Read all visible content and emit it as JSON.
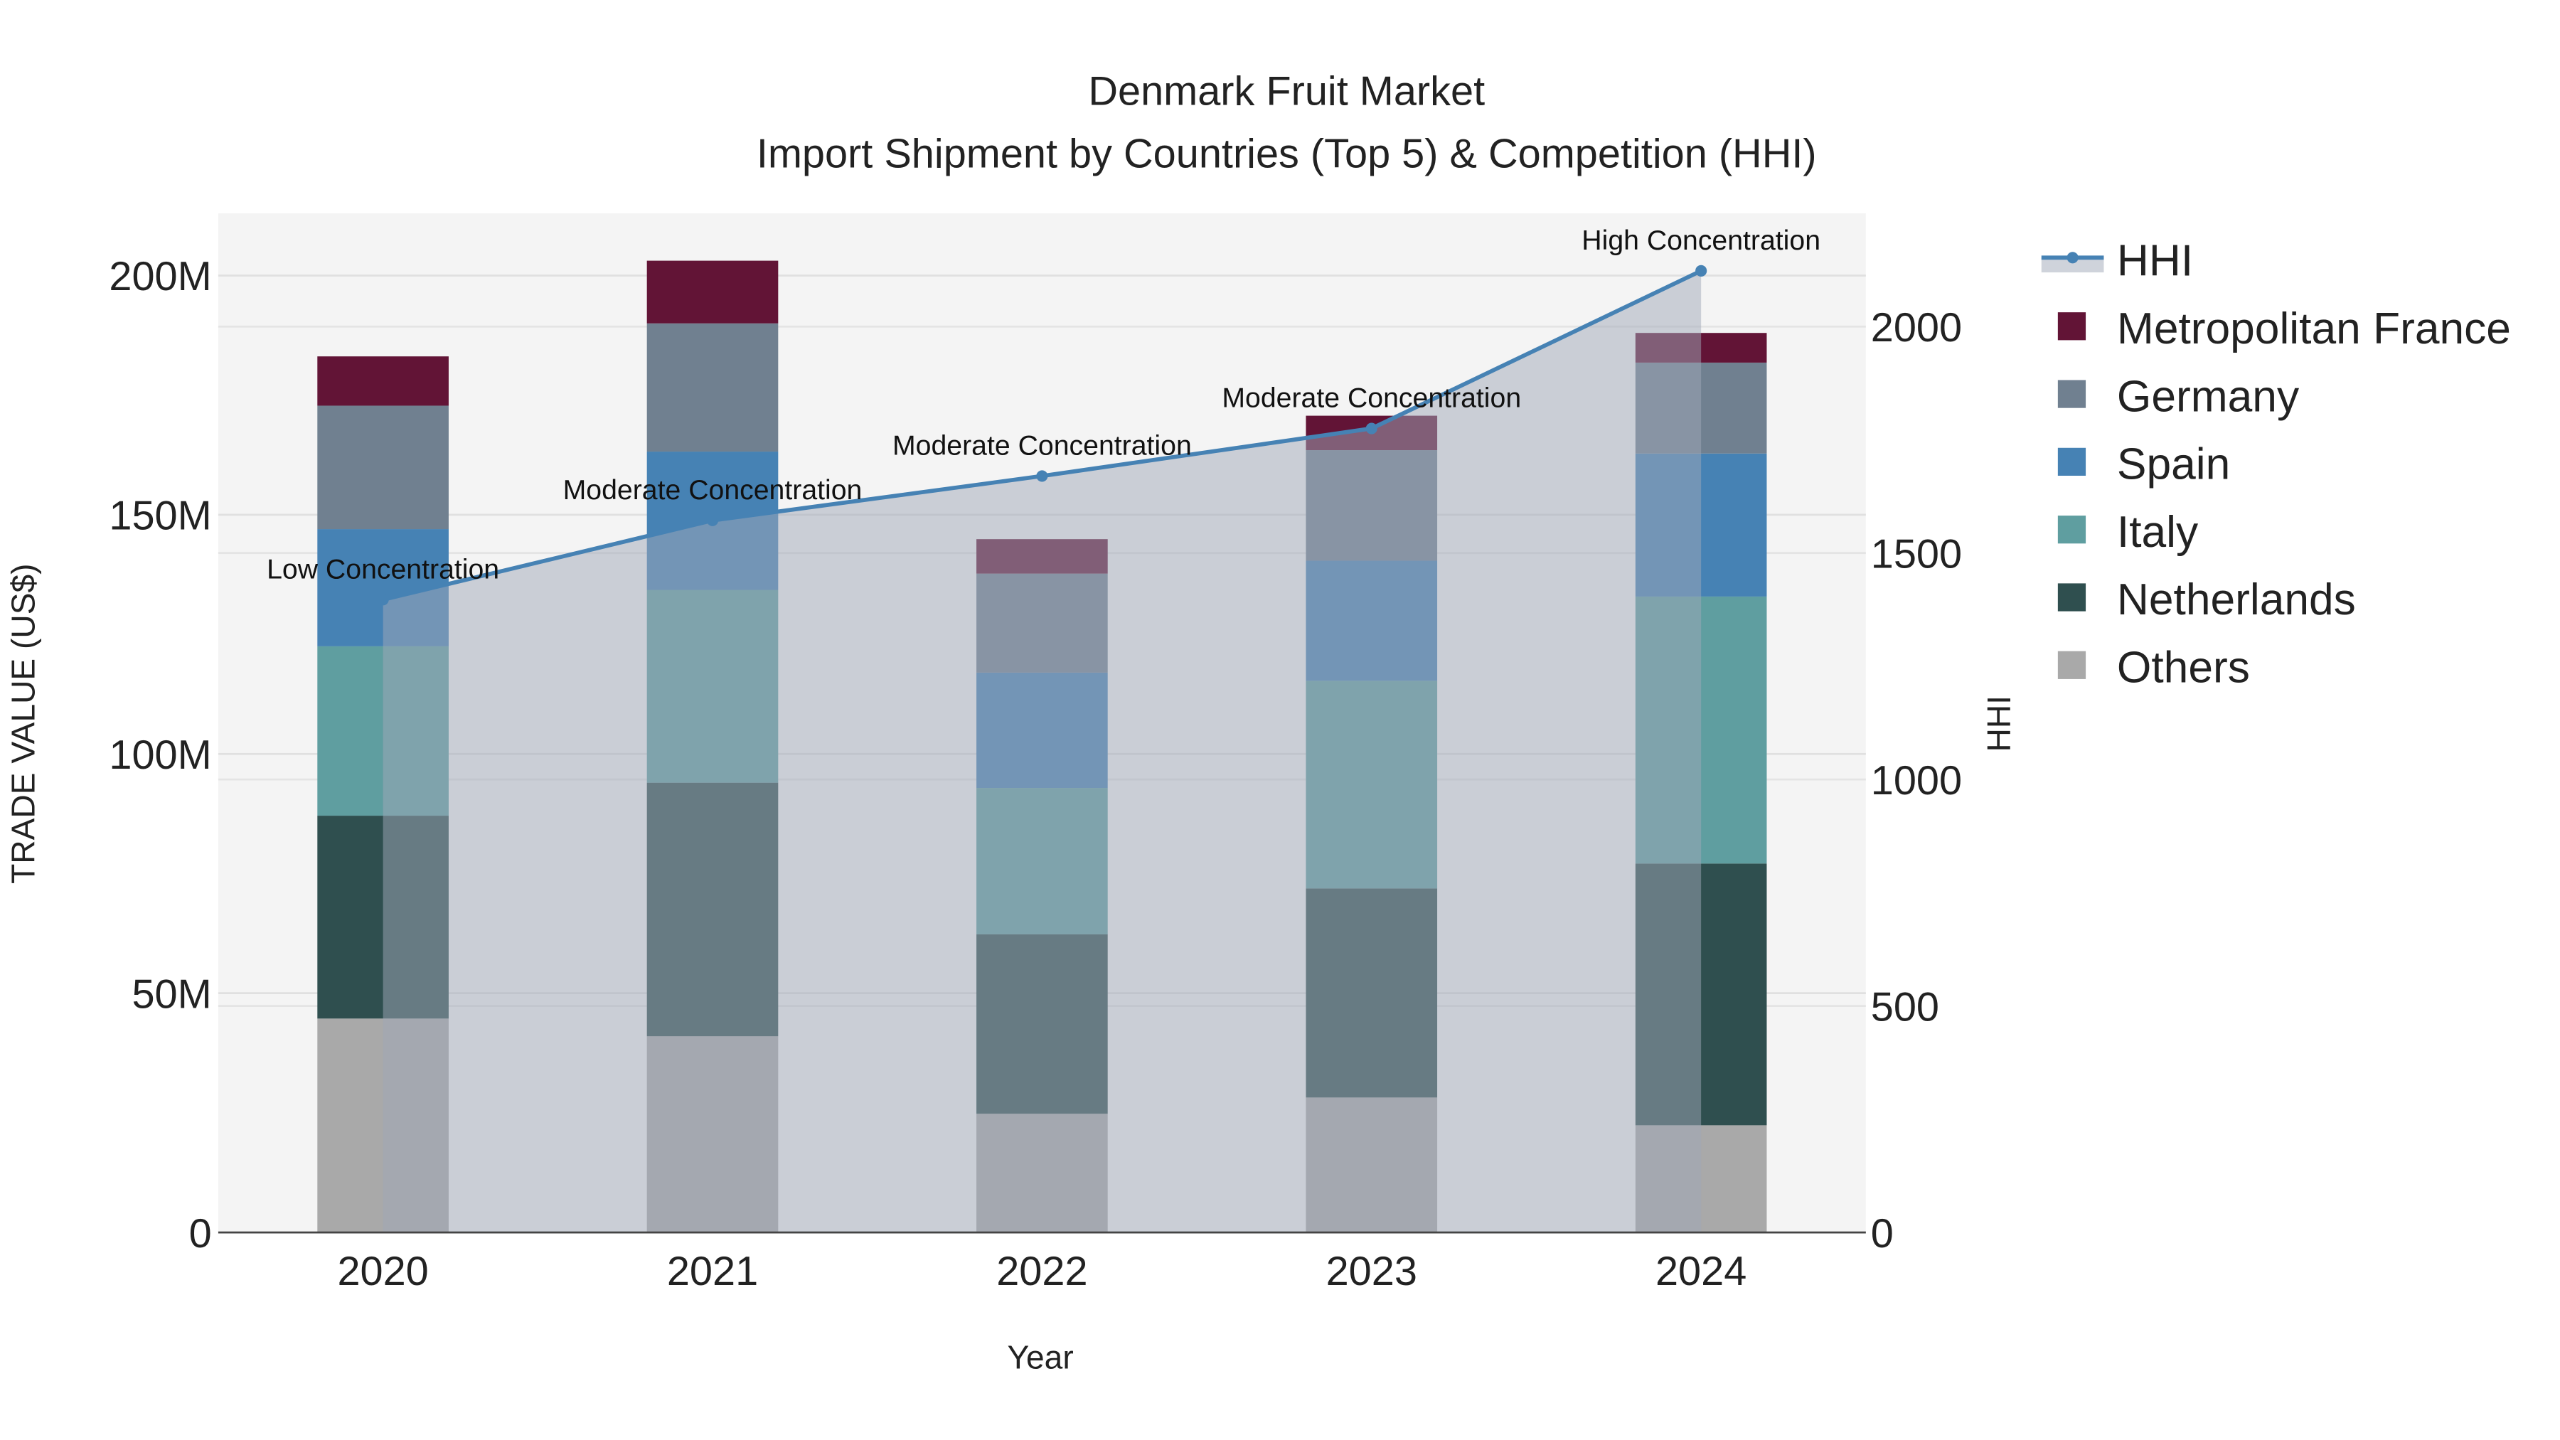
{
  "chart_data": {
    "type": "bar",
    "barmode": "stack",
    "title": "Denmark Fruit Market",
    "subtitle": "Import Shipment by Countries (Top 5) & Competition (HHI)",
    "xlabel": "Year",
    "ylabel": "TRADE VALUE (US$)",
    "y2label": "HHI",
    "categories": [
      "2020",
      "2021",
      "2022",
      "2023",
      "2024"
    ],
    "ylim": [
      0,
      213
    ],
    "y_ticks": [
      0,
      50,
      100,
      150,
      200
    ],
    "y_tick_labels": [
      "0",
      "50M",
      "100M",
      "150M",
      "200M"
    ],
    "y2lim": [
      0,
      2250
    ],
    "y2_ticks": [
      0,
      500,
      1000,
      1500,
      2000
    ],
    "y2_tick_labels": [
      "0",
      "500",
      "1000",
      "1500",
      "2000"
    ],
    "units": "million US$",
    "series": [
      {
        "name": "Others",
        "color": "#a9a9a9",
        "values": [
          44.7,
          41.0,
          24.8,
          28.2,
          22.4
        ]
      },
      {
        "name": "Netherlands",
        "color": "#2f4f4f",
        "values": [
          42.4,
          53.0,
          37.5,
          43.7,
          54.7
        ]
      },
      {
        "name": "Italy",
        "color": "#5f9ea0",
        "values": [
          35.4,
          40.3,
          30.6,
          43.4,
          55.8
        ]
      },
      {
        "name": "Spain",
        "color": "#4682b4",
        "values": [
          24.5,
          28.9,
          24.1,
          25.1,
          29.9
        ]
      },
      {
        "name": "Germany",
        "color": "#708090",
        "values": [
          25.8,
          26.8,
          20.7,
          23.1,
          19.0
        ]
      },
      {
        "name": "Metropolitan France",
        "color": "#621436",
        "values": [
          10.3,
          13.1,
          7.2,
          7.2,
          6.2
        ]
      }
    ],
    "hhi": {
      "name": "HHI",
      "color": "#4682b4",
      "values": [
        1397,
        1572,
        1670,
        1775,
        2123
      ],
      "annotations": [
        "Low Concentration",
        "Moderate Concentration",
        "Moderate Concentration",
        "Moderate Concentration",
        "High Concentration"
      ]
    },
    "legend_order": [
      "HHI",
      "Metropolitan France",
      "Germany",
      "Spain",
      "Italy",
      "Netherlands",
      "Others"
    ],
    "legend_position": "right",
    "grid": true
  }
}
